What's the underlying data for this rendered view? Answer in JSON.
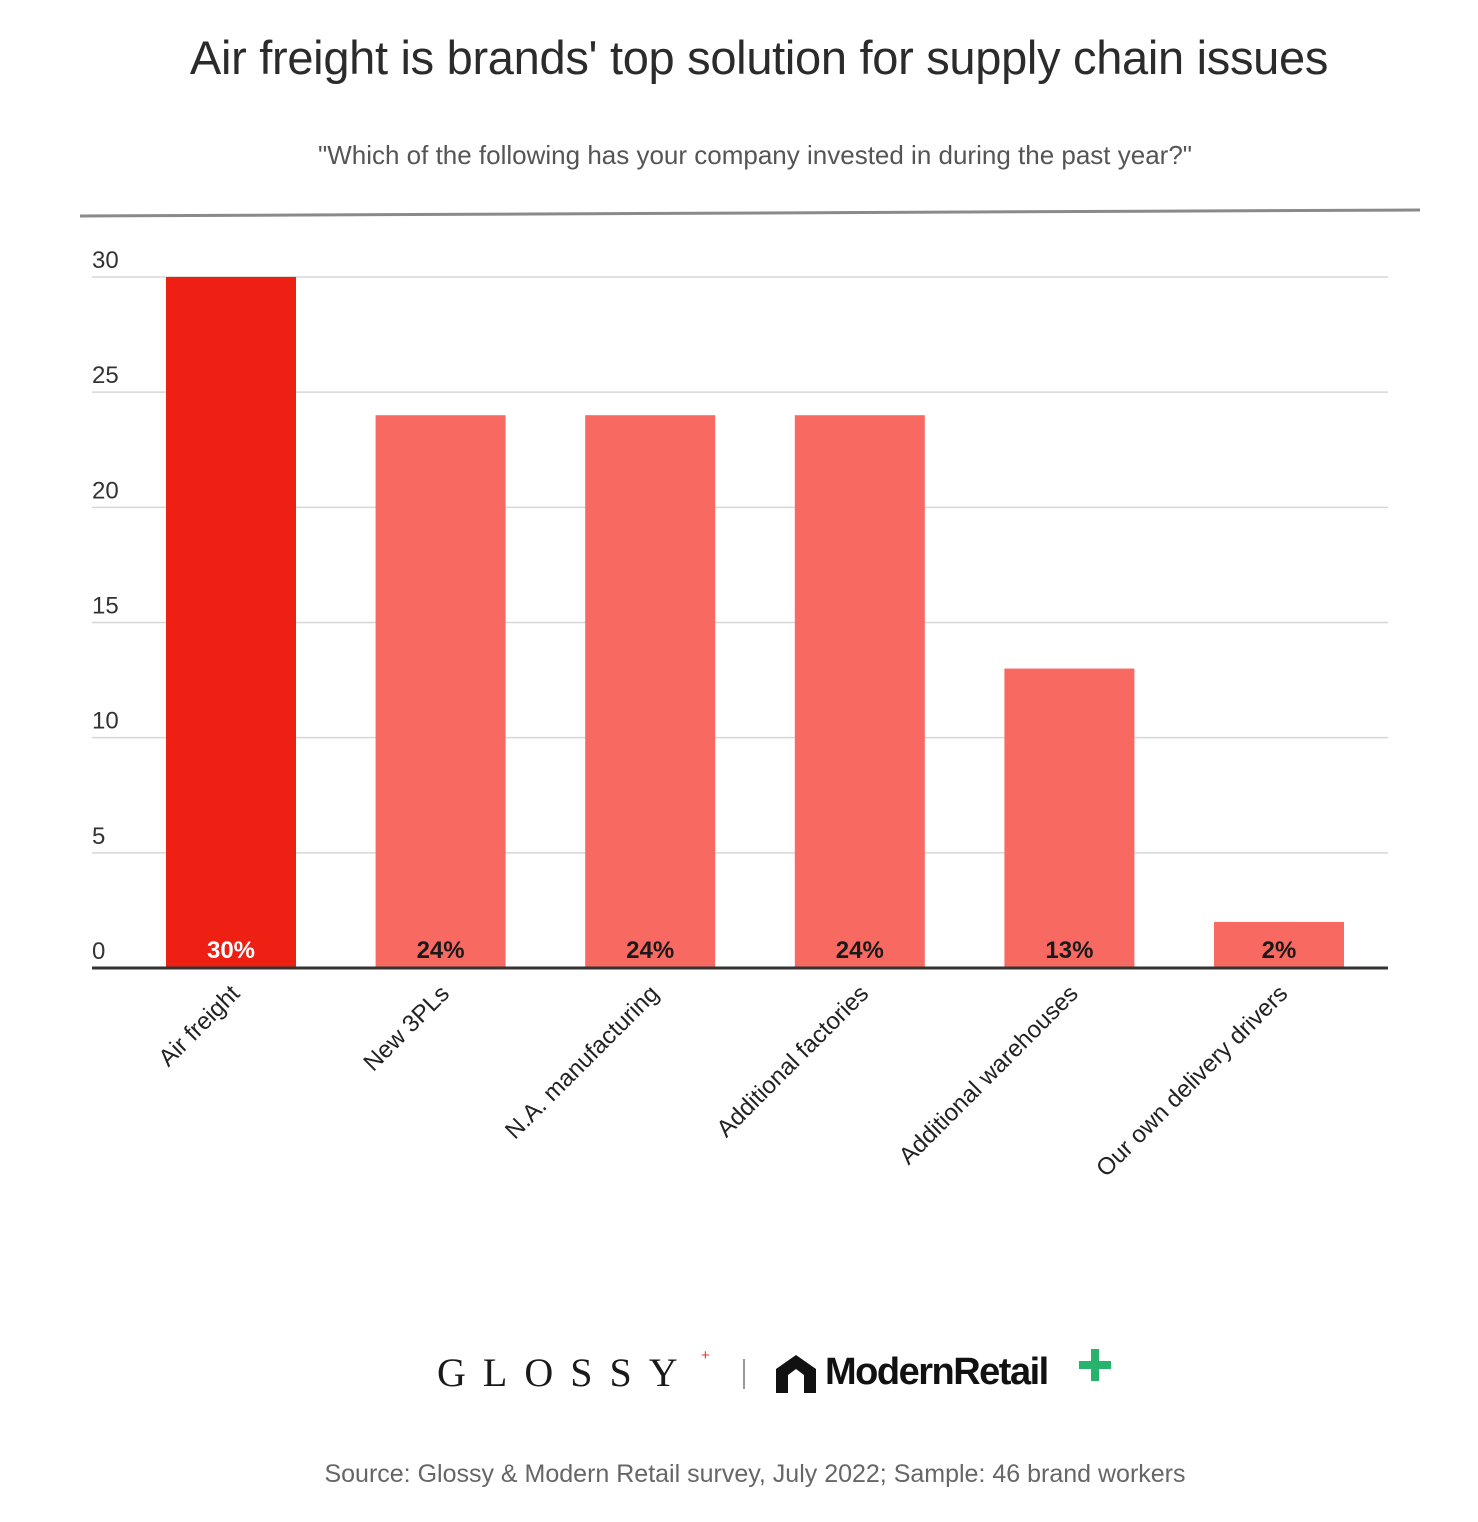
{
  "chart_data": {
    "type": "bar",
    "title": "Air freight is brands' top solution for supply chain issues",
    "subtitle": "\"Which of the following has your company invested in during the past year?\"",
    "categories": [
      "Air freight",
      "New 3PLs",
      "N.A. manufacturing",
      "Additional factories",
      "Additional warehouses",
      "Our own delivery drivers"
    ],
    "values": [
      30,
      24,
      24,
      24,
      13,
      2
    ],
    "data_labels": [
      "30%",
      "24%",
      "24%",
      "24%",
      "13%",
      "2%"
    ],
    "yticks": [
      "0",
      "5",
      "10",
      "15",
      "20",
      "25",
      "30"
    ],
    "ylim": [
      0,
      30
    ],
    "grid": true,
    "colors": {
      "highlight": "#ee2014",
      "bar": "#f86961",
      "highlight_label": "#ffffff",
      "bar_label": "#1a1a1a"
    },
    "highlight_index": 0,
    "source": "Source: Glossy & Modern Retail survey, July 2022; Sample: 46 brand workers"
  },
  "logos": {
    "glossy": "GLOSSY",
    "glossy_plus": "+",
    "modern_retail": "ModernRetail"
  }
}
